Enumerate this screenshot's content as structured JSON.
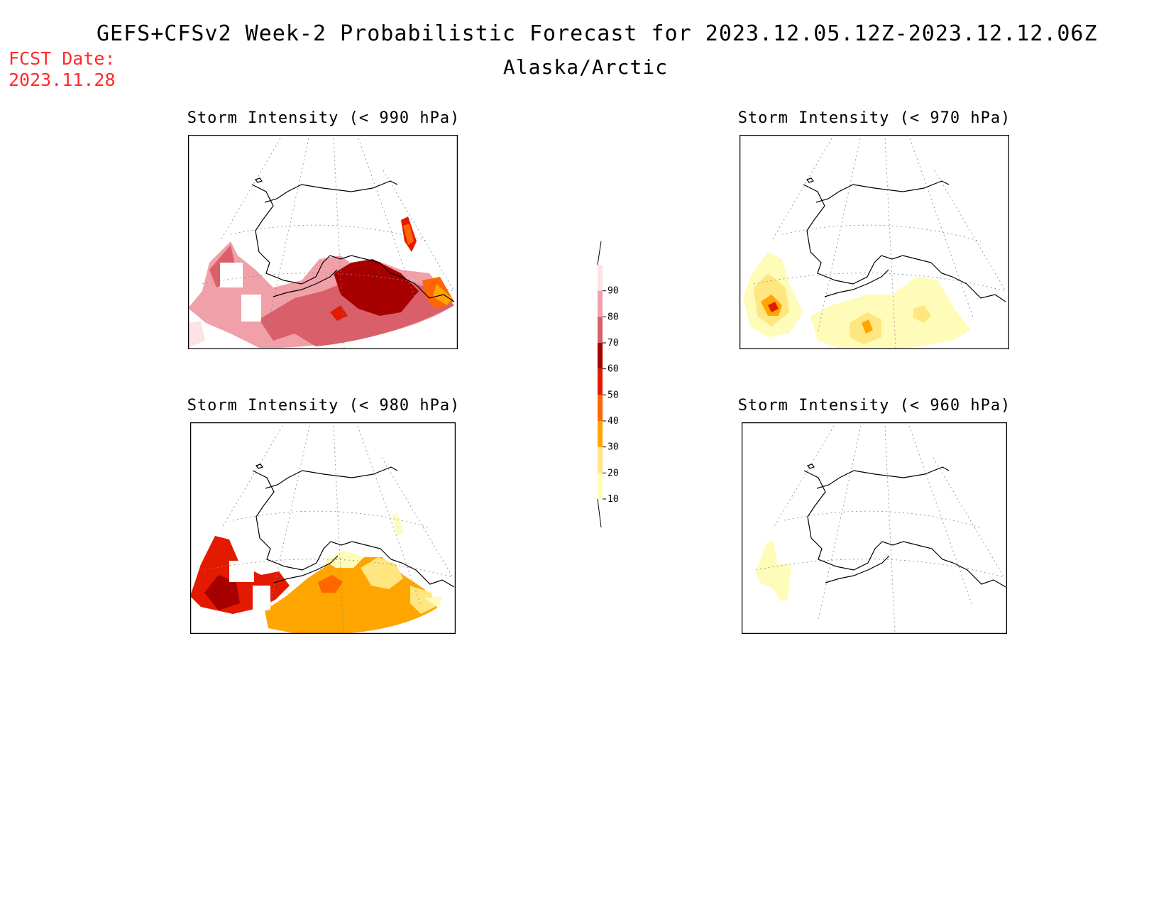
{
  "header": {
    "title": "GEFS+CFSv2 Week-2 Probabilistic Forecast for 2023.12.05.12Z-2023.12.12.06Z",
    "region": "Alaska/Arctic",
    "fcst_label": "FCST Date:",
    "fcst_date": "2023.11.28"
  },
  "panels": [
    {
      "id": "p990",
      "title": "Storm Intensity (< 990 hPa)",
      "level": "high"
    },
    {
      "id": "p970",
      "title": "Storm Intensity (< 970 hPa)",
      "level": "low"
    },
    {
      "id": "p980",
      "title": "Storm Intensity (< 980 hPa)",
      "level": "mid"
    },
    {
      "id": "p960",
      "title": "Storm Intensity (< 960 hPa)",
      "level": "minimal"
    }
  ],
  "colorbar": {
    "levels": [
      "10",
      "20",
      "30",
      "40",
      "50",
      "60",
      "70",
      "80",
      "90"
    ],
    "colors": [
      "#fffbb9",
      "#ffe680",
      "#ffa500",
      "#ff6600",
      "#e31a00",
      "#a70000",
      "#d9606a",
      "#f0a0a8",
      "#fde2e6"
    ]
  }
}
